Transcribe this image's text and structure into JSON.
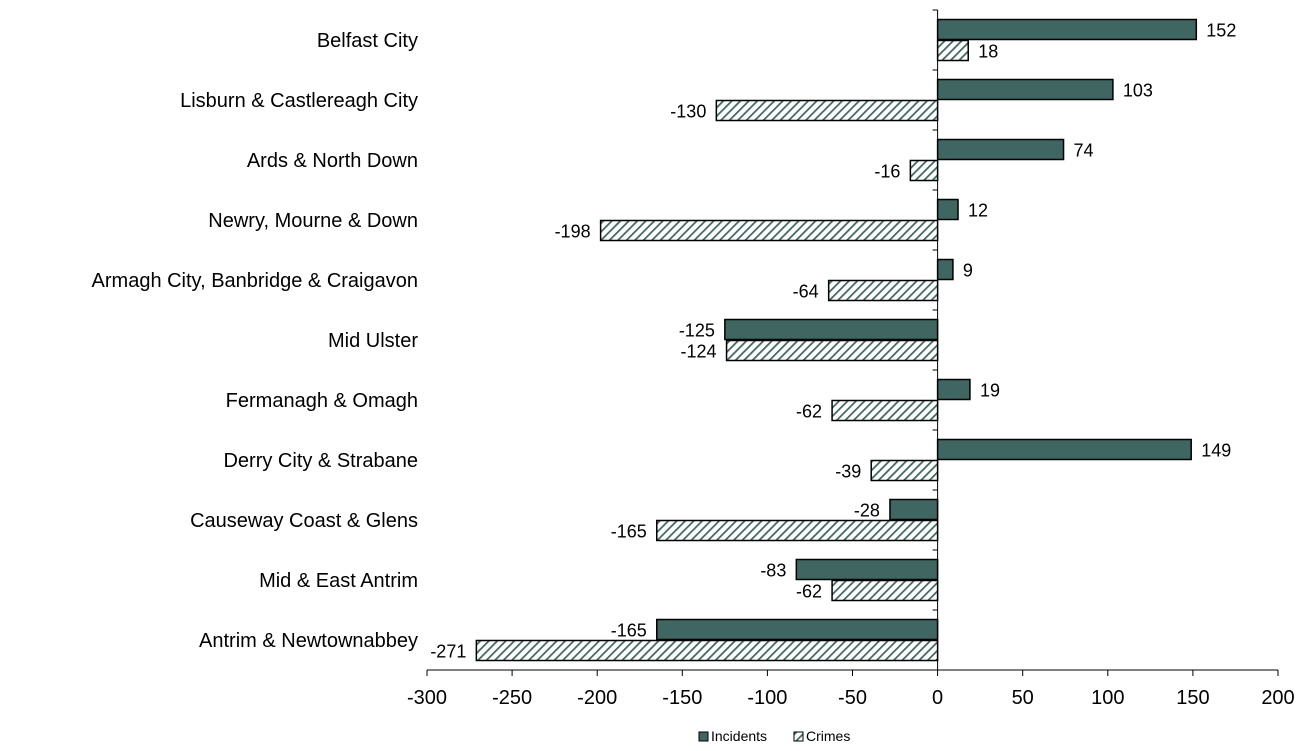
{
  "chart_data": {
    "type": "bar",
    "orientation": "horizontal",
    "categories": [
      "Belfast City",
      "Lisburn & Castlereagh City",
      "Ards & North Down",
      "Newry, Mourne & Down",
      "Armagh City, Banbridge & Craigavon",
      "Mid Ulster",
      "Fermanagh & Omagh",
      "Derry City & Strabane",
      "Causeway Coast & Glens",
      "Mid & East Antrim",
      "Antrim & Newtownabbey"
    ],
    "series": [
      {
        "name": "Incidents",
        "values": [
          152,
          103,
          74,
          12,
          9,
          -125,
          19,
          149,
          -28,
          -83,
          -165
        ],
        "color": "#3f6660",
        "pattern": "solid"
      },
      {
        "name": "Crimes",
        "values": [
          18,
          -130,
          -16,
          -198,
          -64,
          -124,
          -62,
          -39,
          -165,
          -62,
          -271
        ],
        "color": "#3f6660",
        "pattern": "diagonal-hatch"
      }
    ],
    "xlim": [
      -300,
      200
    ],
    "xticks": [
      -300,
      -250,
      -200,
      -150,
      -100,
      -50,
      0,
      50,
      100,
      150,
      200
    ],
    "title": "",
    "xlabel": "",
    "ylabel": "",
    "grid": false,
    "data_labels": true,
    "legend": "bottom"
  }
}
